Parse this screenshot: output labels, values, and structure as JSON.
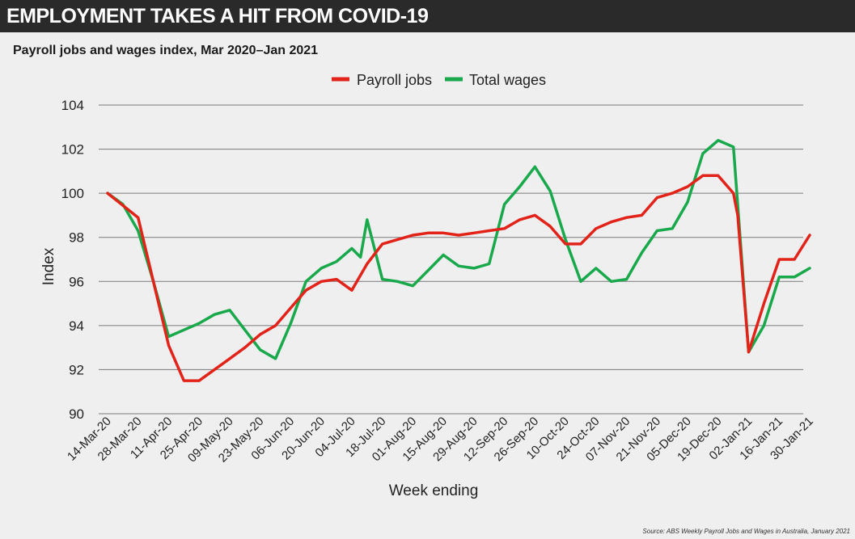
{
  "header": {
    "title": "EMPLOYMENT TAKES A HIT FROM COVID-19"
  },
  "subtitle": "Payroll jobs and wages index, Mar 2020–Jan 2021",
  "source": "Source: ABS Weekly Payroll Jobs and Wages in Australia, January 2021",
  "colors": {
    "background": "#efefef",
    "header_bg": "#2a2a2a",
    "payroll": "#e2231a",
    "wages": "#19a94c",
    "grid": "#7a7a7a"
  },
  "chart_data": {
    "type": "line",
    "title": "Payroll jobs and wages index, Mar 2020–Jan 2021",
    "xlabel": "Week ending",
    "ylabel": "Index",
    "ylim": [
      90,
      104
    ],
    "yticks": [
      90,
      92,
      94,
      96,
      98,
      100,
      102,
      104
    ],
    "grid": true,
    "legend_position": "top-center",
    "x": [
      "14-Mar-20",
      "21-Mar-20",
      "28-Mar-20",
      "04-Apr-20",
      "11-Apr-20",
      "18-Apr-20",
      "25-Apr-20",
      "02-May-20",
      "09-May-20",
      "16-May-20",
      "23-May-20",
      "30-May-20",
      "06-Jun-20",
      "13-Jun-20",
      "20-Jun-20",
      "27-Jun-20",
      "04-Jul-20",
      "11-Jul-20",
      "18-Jul-20",
      "25-Jul-20",
      "01-Aug-20",
      "08-Aug-20",
      "15-Aug-20",
      "22-Aug-20",
      "29-Aug-20",
      "05-Sep-20",
      "12-Sep-20",
      "19-Sep-20",
      "26-Sep-20",
      "03-Oct-20",
      "10-Oct-20",
      "17-Oct-20",
      "24-Oct-20",
      "31-Oct-20",
      "07-Nov-20",
      "14-Nov-20",
      "21-Nov-20",
      "28-Nov-20",
      "05-Dec-20",
      "12-Dec-20",
      "19-Dec-20",
      "26-Dec-20",
      "02-Jan-21",
      "09-Jan-21",
      "16-Jan-21",
      "23-Jan-21",
      "30-Jan-21"
    ],
    "xtick_labels": [
      "14-Mar-20",
      "28-Mar-20",
      "11-Apr-20",
      "25-Apr-20",
      "09-May-20",
      "23-May-20",
      "06-Jun-20",
      "20-Jun-20",
      "04-Jul-20",
      "18-Jul-20",
      "01-Aug-20",
      "15-Aug-20",
      "29-Aug-20",
      "12-Sep-20",
      "26-Sep-20",
      "10-Oct-20",
      "24-Oct-20",
      "07-Nov-20",
      "21-Nov-20",
      "05-Dec-20",
      "19-Dec-20",
      "02-Jan-21",
      "16-Jan-21",
      "30-Jan-21"
    ],
    "series": [
      {
        "name": "Payroll jobs",
        "color": "#e2231a",
        "points": [
          [
            "14-Mar-20",
            100.0
          ],
          [
            "28-Mar-20",
            98.9
          ],
          [
            "04-Apr-20",
            96.0
          ],
          [
            "11-Apr-20",
            93.1
          ],
          [
            "18-Apr-20",
            91.5
          ],
          [
            "25-Apr-20",
            91.5
          ],
          [
            "02-May-20",
            92.0
          ],
          [
            "09-May-20",
            92.5
          ],
          [
            "16-May-20",
            93.0
          ],
          [
            "23-May-20",
            93.6
          ],
          [
            "30-May-20",
            94.0
          ],
          [
            "06-Jun-20",
            94.8
          ],
          [
            "13-Jun-20",
            95.6
          ],
          [
            "20-Jun-20",
            96.0
          ],
          [
            "27-Jun-20",
            96.1
          ],
          [
            "04-Jul-20",
            95.6
          ],
          [
            "11-Jul-20",
            96.8
          ],
          [
            "18-Jul-20",
            97.7
          ],
          [
            "25-Jul-20",
            97.9
          ],
          [
            "01-Aug-20",
            98.1
          ],
          [
            "08-Aug-20",
            98.2
          ],
          [
            "15-Aug-20",
            98.2
          ],
          [
            "22-Aug-20",
            98.1
          ],
          [
            "29-Aug-20",
            98.2
          ],
          [
            "05-Sep-20",
            98.3
          ],
          [
            "12-Sep-20",
            98.4
          ],
          [
            "19-Sep-20",
            98.8
          ],
          [
            "26-Sep-20",
            99.0
          ],
          [
            "03-Oct-20",
            98.5
          ],
          [
            "10-Oct-20",
            97.7
          ],
          [
            "17-Oct-20",
            97.7
          ],
          [
            "24-Oct-20",
            98.4
          ],
          [
            "31-Oct-20",
            98.7
          ],
          [
            "07-Nov-20",
            98.9
          ],
          [
            "14-Nov-20",
            99.0
          ],
          [
            "21-Nov-20",
            99.8
          ],
          [
            "28-Nov-20",
            100.0
          ],
          [
            "05-Dec-20",
            100.3
          ],
          [
            "12-Dec-20",
            100.8
          ],
          [
            "19-Dec-20",
            100.8
          ],
          [
            "26-Dec-20",
            100.0
          ],
          [
            "28-Dec-20",
            99.0
          ],
          [
            "02-Jan-21",
            92.8
          ],
          [
            "09-Jan-21",
            95.0
          ],
          [
            "16-Jan-21",
            97.0
          ],
          [
            "23-Jan-21",
            97.0
          ],
          [
            "30-Jan-21",
            98.1
          ]
        ]
      },
      {
        "name": "Total wages",
        "color": "#19a94c",
        "points": [
          [
            "14-Mar-20",
            100.0
          ],
          [
            "21-Mar-20",
            99.5
          ],
          [
            "28-Mar-20",
            98.3
          ],
          [
            "04-Apr-20",
            96.0
          ],
          [
            "11-Apr-20",
            93.5
          ],
          [
            "18-Apr-20",
            93.8
          ],
          [
            "25-Apr-20",
            94.1
          ],
          [
            "02-May-20",
            94.5
          ],
          [
            "09-May-20",
            94.7
          ],
          [
            "16-May-20",
            93.8
          ],
          [
            "23-May-20",
            92.9
          ],
          [
            "30-May-20",
            92.5
          ],
          [
            "06-Jun-20",
            94.1
          ],
          [
            "13-Jun-20",
            96.0
          ],
          [
            "20-Jun-20",
            96.6
          ],
          [
            "27-Jun-20",
            96.9
          ],
          [
            "04-Jul-20",
            97.5
          ],
          [
            "08-Jul-20",
            97.1
          ],
          [
            "11-Jul-20",
            98.8
          ],
          [
            "18-Jul-20",
            96.1
          ],
          [
            "25-Jul-20",
            96.0
          ],
          [
            "01-Aug-20",
            95.8
          ],
          [
            "08-Aug-20",
            96.5
          ],
          [
            "15-Aug-20",
            97.2
          ],
          [
            "22-Aug-20",
            96.7
          ],
          [
            "29-Aug-20",
            96.6
          ],
          [
            "05-Sep-20",
            96.8
          ],
          [
            "12-Sep-20",
            99.5
          ],
          [
            "19-Sep-20",
            100.3
          ],
          [
            "26-Sep-20",
            101.2
          ],
          [
            "03-Oct-20",
            100.1
          ],
          [
            "10-Oct-20",
            97.9
          ],
          [
            "17-Oct-20",
            96.0
          ],
          [
            "24-Oct-20",
            96.6
          ],
          [
            "31-Oct-20",
            96.0
          ],
          [
            "07-Nov-20",
            96.1
          ],
          [
            "14-Nov-20",
            97.3
          ],
          [
            "21-Nov-20",
            98.3
          ],
          [
            "28-Nov-20",
            98.4
          ],
          [
            "05-Dec-20",
            99.6
          ],
          [
            "12-Dec-20",
            101.8
          ],
          [
            "19-Dec-20",
            102.4
          ],
          [
            "26-Dec-20",
            102.1
          ],
          [
            "02-Jan-21",
            92.8
          ],
          [
            "09-Jan-21",
            94.0
          ],
          [
            "16-Jan-21",
            96.2
          ],
          [
            "23-Jan-21",
            96.2
          ],
          [
            "30-Jan-21",
            96.6
          ]
        ]
      }
    ]
  }
}
